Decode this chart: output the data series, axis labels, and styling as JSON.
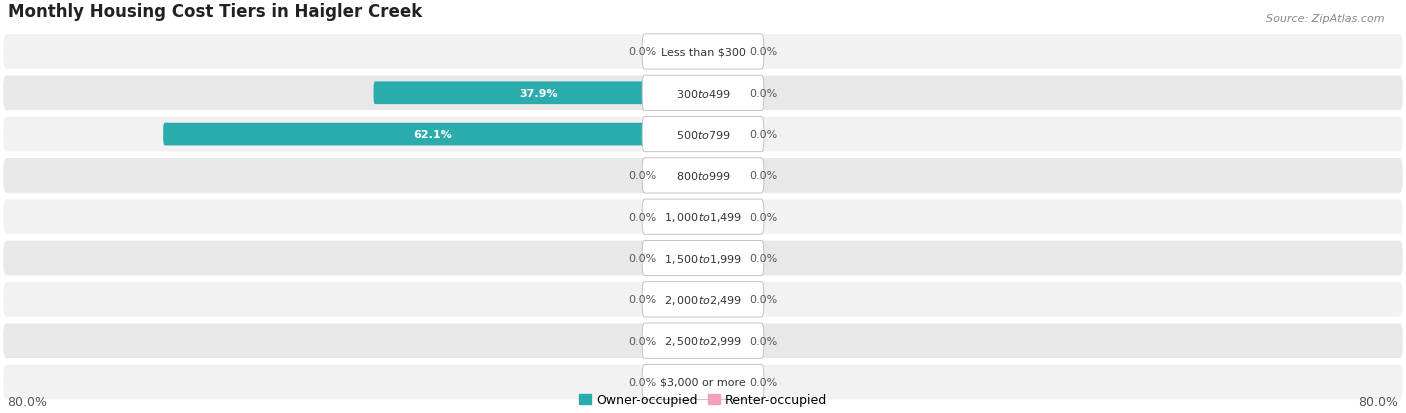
{
  "title": "Monthly Housing Cost Tiers in Haigler Creek",
  "source": "Source: ZipAtlas.com",
  "categories": [
    "Less than $300",
    "$300 to $499",
    "$500 to $799",
    "$800 to $999",
    "$1,000 to $1,499",
    "$1,500 to $1,999",
    "$2,000 to $2,499",
    "$2,500 to $2,999",
    "$3,000 or more"
  ],
  "owner_values": [
    0.0,
    37.9,
    62.1,
    0.0,
    0.0,
    0.0,
    0.0,
    0.0,
    0.0
  ],
  "renter_values": [
    0.0,
    0.0,
    0.0,
    0.0,
    0.0,
    0.0,
    0.0,
    0.0,
    0.0
  ],
  "owner_color_full": "#2AACAC",
  "owner_color_stub": "#7DD4D4",
  "renter_color": "#F4A0B8",
  "owner_label": "Owner-occupied",
  "renter_label": "Renter-occupied",
  "xlim": 80.0,
  "bar_height": 0.55,
  "stub_size": 4.5,
  "background_color": "#ffffff",
  "row_colors": [
    "#f2f2f2",
    "#e8e8e8"
  ],
  "axis_label_left": "80.0%",
  "axis_label_right": "80.0%",
  "title_fontsize": 12,
  "source_fontsize": 8,
  "label_fontsize": 9,
  "category_fontsize": 8,
  "value_fontsize": 8
}
